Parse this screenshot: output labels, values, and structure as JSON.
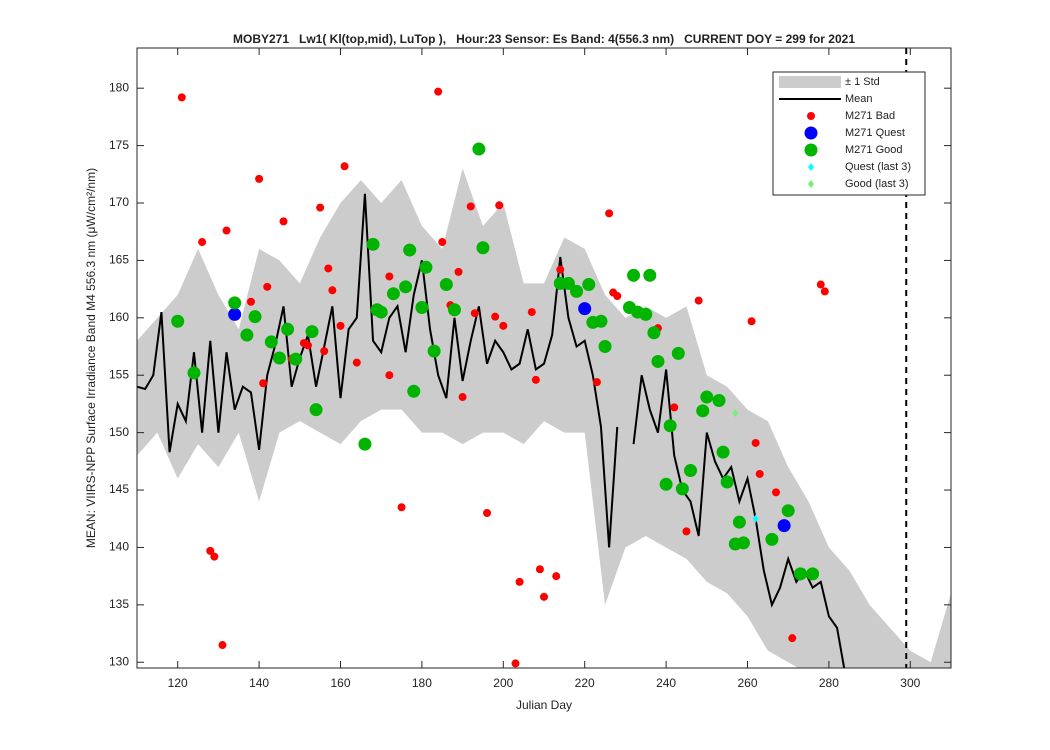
{
  "chart_data": {
    "type": "line",
    "title": "MOBY271   Lw1( Kl(top,mid), LuTop ),   Hour:23 Sensor: Es Band: 4(556.3 nm)   CURRENT DOY = 299 for 2021",
    "xlabel": "Julian Day",
    "ylabel": "MEAN: VIIRS-NPP Surface Irradiance Band M4 556.3 nm (μW/cm²/nm)",
    "xlim": [
      110,
      310
    ],
    "ylim": [
      129.5,
      183.5
    ],
    "xticks": [
      120,
      140,
      160,
      180,
      200,
      220,
      240,
      260,
      280,
      300
    ],
    "yticks": [
      130,
      135,
      140,
      145,
      150,
      155,
      160,
      165,
      170,
      175,
      180
    ],
    "current_doy": 299,
    "legend": "top-right",
    "series": [
      {
        "name": "± 1 Std",
        "type": "band",
        "color": "#cccccc",
        "x": [
          110,
          115,
          120,
          125,
          130,
          135,
          140,
          145,
          150,
          155,
          160,
          165,
          170,
          175,
          180,
          185,
          190,
          195,
          200,
          205,
          210,
          215,
          220,
          225,
          230,
          235,
          240,
          245,
          250,
          255,
          260,
          265,
          270,
          275,
          280,
          285,
          290,
          295,
          300,
          305,
          310
        ],
        "lower": [
          148,
          150,
          146,
          149,
          147,
          150,
          144,
          150,
          151,
          150,
          149,
          151,
          152,
          152,
          150,
          150,
          149,
          150,
          150,
          149,
          151,
          150,
          150,
          135,
          140,
          141,
          140,
          139,
          137,
          136,
          134,
          131,
          130,
          129,
          128,
          127,
          127,
          128,
          127,
          127,
          128
        ],
        "upper": [
          158,
          160,
          162,
          166,
          162,
          159,
          166,
          165,
          163,
          167,
          170,
          172,
          170,
          172,
          168,
          166,
          173,
          168,
          170,
          163,
          163,
          167,
          166,
          162,
          160,
          161,
          160,
          161,
          155,
          154,
          152,
          151,
          147,
          144,
          140,
          138,
          135,
          133,
          131,
          130,
          136
        ]
      },
      {
        "name": "Mean",
        "type": "line",
        "color": "#000000",
        "x": [
          110,
          112,
          114,
          116,
          118,
          120,
          122,
          124,
          126,
          128,
          130,
          132,
          134,
          136,
          138,
          140,
          142,
          144,
          146,
          148,
          150,
          152,
          154,
          156,
          158,
          160,
          162,
          164,
          166,
          168,
          170,
          172,
          174,
          176,
          178,
          180,
          182,
          184,
          186,
          188,
          190,
          192,
          194,
          196,
          198,
          200,
          202,
          204,
          206,
          208,
          210,
          212,
          214,
          216,
          218,
          220,
          222,
          224,
          226,
          228,
          230,
          232,
          234,
          236,
          238,
          240,
          242,
          244,
          246,
          248,
          250,
          252,
          254,
          256,
          258,
          260,
          262,
          264,
          266,
          268,
          270,
          272,
          274,
          276,
          278,
          280,
          282,
          284
        ],
        "values": [
          154,
          153.8,
          155,
          160.5,
          148.3,
          152.5,
          151,
          157,
          150,
          158,
          150,
          157,
          152,
          154,
          153.5,
          148.5,
          155,
          157.7,
          161,
          154,
          156.5,
          158.5,
          154,
          157.5,
          161,
          153,
          159,
          160,
          170.8,
          158,
          157,
          160,
          161,
          157,
          162,
          165,
          159,
          155,
          153,
          160,
          154.5,
          158,
          161,
          156,
          158,
          157,
          155.5,
          156,
          159,
          155.5,
          156,
          158.5,
          165.3,
          160,
          157.5,
          158,
          155,
          150.5,
          140,
          150.5,
          null,
          149,
          155,
          152,
          150,
          155.5,
          148,
          145,
          144,
          141,
          150,
          147.5,
          146,
          147,
          144,
          146,
          142.5,
          138,
          135,
          136.5,
          139,
          137,
          138,
          136.5,
          137,
          134,
          133,
          129
        ]
      },
      {
        "name": "M271 Bad",
        "type": "scatter",
        "marker": "circle",
        "color": "#ff0000",
        "x": [
          121,
          126,
          128,
          129,
          131,
          132,
          138,
          140,
          141,
          142,
          146,
          148,
          151,
          152,
          155,
          156,
          157,
          158,
          160,
          161,
          164,
          172,
          172,
          175,
          184,
          185,
          187,
          189,
          190,
          192,
          193,
          196,
          198,
          199,
          200,
          203,
          204,
          207,
          208,
          209,
          210,
          213,
          214,
          223,
          226,
          227,
          228,
          238,
          242,
          245,
          248,
          261,
          262,
          263,
          267,
          271,
          278,
          279
        ],
        "values": [
          179.2,
          166.6,
          139.7,
          139.2,
          131.5,
          167.6,
          161.4,
          172.1,
          154.3,
          162.7,
          168.4,
          156.4,
          157.8,
          157.6,
          169.6,
          157.1,
          164.3,
          162.4,
          159.3,
          173.2,
          156.1,
          155,
          163.6,
          143.5,
          179.7,
          166.6,
          161.1,
          164,
          153.1,
          169.7,
          160.4,
          143,
          160.1,
          169.8,
          159.3,
          129.9,
          137,
          160.5,
          154.6,
          138.1,
          135.7,
          137.5,
          164.2,
          154.4,
          169.1,
          162.2,
          161.9,
          159.1,
          152.2,
          141.4,
          161.5,
          159.7,
          149.1,
          146.4,
          144.8,
          132.1,
          162.9,
          162.3
        ]
      },
      {
        "name": "M271 Quest",
        "type": "scatter",
        "marker": "circle-large",
        "color": "#0000ff",
        "x": [
          134,
          220,
          269
        ],
        "values": [
          160.3,
          160.8,
          141.9
        ]
      },
      {
        "name": "M271 Good",
        "type": "scatter",
        "marker": "circle-large",
        "color": "#00b400",
        "x": [
          120,
          124,
          134,
          137,
          139,
          143,
          145,
          147,
          149,
          153,
          154,
          166,
          168,
          169,
          170,
          173,
          176,
          177,
          178,
          180,
          181,
          183,
          186,
          188,
          194,
          195,
          214,
          216,
          218,
          221,
          222,
          224,
          225,
          231,
          232,
          233,
          235,
          236,
          237,
          238,
          240,
          241,
          243,
          244,
          246,
          249,
          250,
          253,
          254,
          255,
          257,
          258,
          259,
          266,
          270,
          273,
          276
        ],
        "values": [
          159.7,
          155.2,
          161.3,
          158.5,
          160.1,
          157.9,
          156.5,
          159,
          156.4,
          158.8,
          152,
          149,
          166.4,
          160.7,
          160.5,
          162.1,
          162.7,
          165.9,
          153.6,
          160.9,
          164.4,
          157.1,
          162.9,
          160.7,
          174.7,
          166.1,
          163,
          163,
          162.3,
          162.9,
          159.6,
          159.7,
          157.5,
          160.9,
          163.7,
          160.5,
          160.3,
          163.7,
          158.7,
          156.2,
          145.5,
          150.6,
          156.9,
          145.1,
          146.7,
          151.9,
          153.1,
          152.8,
          148.3,
          145.7,
          140.3,
          142.2,
          140.4,
          140.7,
          143.2,
          137.7,
          137.7
        ]
      },
      {
        "name": "Quest (last 3)",
        "type": "scatter",
        "marker": "diamond",
        "color": "#00ffff",
        "x": [
          262
        ],
        "values": [
          142.5
        ]
      },
      {
        "name": "Good (last 3)",
        "type": "scatter",
        "marker": "diamond",
        "color": "#77ee77",
        "x": [
          257
        ],
        "values": [
          151.7
        ]
      }
    ]
  }
}
